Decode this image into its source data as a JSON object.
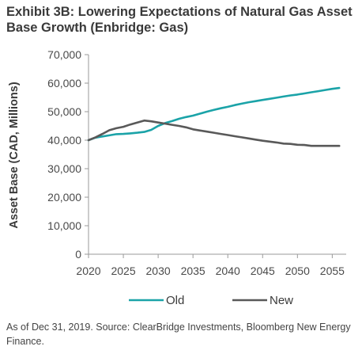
{
  "title": "Exhibit 3B: Lowering Expectations of Natural Gas Asset Base Growth (Enbridge: Gas)",
  "footnote": "As of Dec 31, 2019. Source: ClearBridge Investments, Bloomberg New Energy Finance.",
  "colors": {
    "old": "#1ba3a8",
    "new": "#595959",
    "axis": "#9a9a9a"
  },
  "chart_data": {
    "type": "line",
    "title": "Exhibit 3B: Lowering Expectations of Natural Gas Asset Base Growth (Enbridge: Gas)",
    "xlabel": "",
    "ylabel": "Asset Base  (CAD, Millions)",
    "xlim": [
      2020,
      2057
    ],
    "ylim": [
      0,
      70000
    ],
    "x_ticks": [
      2020,
      2025,
      2030,
      2035,
      2040,
      2045,
      2050,
      2055
    ],
    "y_ticks": [
      0,
      10000,
      20000,
      30000,
      40000,
      50000,
      60000,
      70000
    ],
    "y_tick_labels": [
      "0",
      "10,000",
      "20,000",
      "30,000",
      "40,000",
      "50,000",
      "60,000",
      "70,000"
    ],
    "grid": false,
    "legend": "bottom",
    "series": [
      {
        "name": "Old",
        "color": "#1ba3a8",
        "x": [
          2020,
          2021,
          2022,
          2023,
          2024,
          2025,
          2026,
          2027,
          2028,
          2029,
          2030,
          2031,
          2032,
          2033,
          2034,
          2035,
          2036,
          2037,
          2038,
          2039,
          2040,
          2041,
          2042,
          2043,
          2044,
          2045,
          2046,
          2047,
          2048,
          2049,
          2050,
          2051,
          2052,
          2053,
          2054,
          2055,
          2056
        ],
        "values": [
          40000,
          40900,
          41300,
          41700,
          42100,
          42200,
          42400,
          42600,
          42900,
          43600,
          45000,
          46000,
          46700,
          47500,
          48100,
          48600,
          49300,
          50000,
          50600,
          51200,
          51700,
          52300,
          52800,
          53300,
          53700,
          54100,
          54500,
          54900,
          55300,
          55700,
          56000,
          56400,
          56800,
          57200,
          57600,
          58000,
          58300
        ]
      },
      {
        "name": "New",
        "color": "#595959",
        "x": [
          2020,
          2021,
          2022,
          2023,
          2024,
          2025,
          2026,
          2027,
          2028,
          2029,
          2030,
          2031,
          2032,
          2033,
          2034,
          2035,
          2036,
          2037,
          2038,
          2039,
          2040,
          2041,
          2042,
          2043,
          2044,
          2045,
          2046,
          2047,
          2048,
          2049,
          2050,
          2051,
          2052,
          2053,
          2054,
          2055,
          2056
        ],
        "values": [
          40000,
          41000,
          42200,
          43500,
          44200,
          44700,
          45500,
          46200,
          46900,
          46600,
          46200,
          45800,
          45400,
          45000,
          44500,
          43800,
          43400,
          43000,
          42600,
          42200,
          41800,
          41400,
          41000,
          40600,
          40200,
          39800,
          39500,
          39200,
          38800,
          38700,
          38400,
          38300,
          38000,
          38000,
          38000,
          38000,
          38000
        ]
      }
    ]
  }
}
